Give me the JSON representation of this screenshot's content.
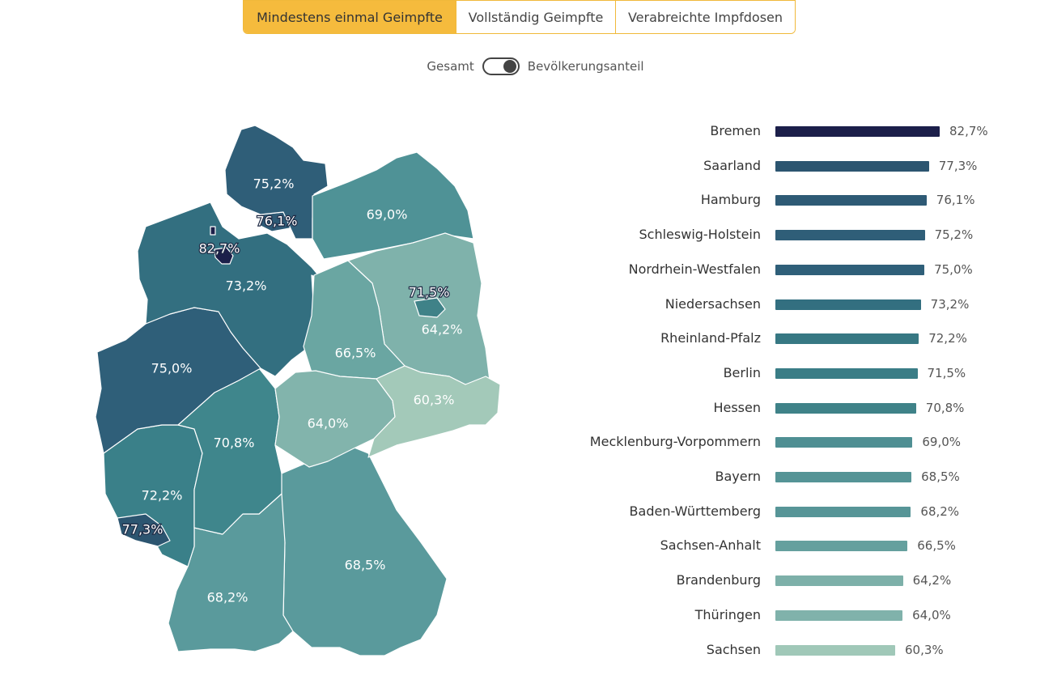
{
  "tabs": [
    {
      "label": "Mindestens einmal Geimpfte",
      "active": true
    },
    {
      "label": "Vollständig Geimpfte",
      "active": false
    },
    {
      "label": "Verabreichte Impfdosen",
      "active": false
    }
  ],
  "toggle": {
    "left_label": "Gesamt",
    "right_label": "Bevölkerungsanteil",
    "state": "right"
  },
  "map_labels": {
    "schleswig_holstein": "75,2%",
    "hamburg": "76,1%",
    "bremen": "82,7%",
    "niedersachsen": "73,2%",
    "mecklenburg_vorpommern": "69,0%",
    "brandenburg": "64,2%",
    "berlin": "71,5%",
    "sachsen_anhalt": "66,5%",
    "nordrhein_westfalen": "75,0%",
    "hessen": "70,8%",
    "thueringen": "64,0%",
    "sachsen": "60,3%",
    "rheinland_pfalz": "72,2%",
    "saarland": "77,3%",
    "bayern": "68,5%",
    "baden_wuerttemberg": "68,2%"
  },
  "chart_data": {
    "type": "bar",
    "orientation": "horizontal",
    "categories": [
      "Bremen",
      "Saarland",
      "Hamburg",
      "Schleswig-Holstein",
      "Nordrhein-Westfalen",
      "Niedersachsen",
      "Rheinland-Pfalz",
      "Berlin",
      "Hessen",
      "Mecklenburg-Vorpommern",
      "Bayern",
      "Baden-Württemberg",
      "Sachsen-Anhalt",
      "Brandenburg",
      "Thüringen",
      "Sachsen"
    ],
    "values": [
      82.7,
      77.3,
      76.1,
      75.2,
      75.0,
      73.2,
      72.2,
      71.5,
      70.8,
      69.0,
      68.5,
      68.2,
      66.5,
      64.2,
      64.0,
      60.3
    ],
    "value_labels": [
      "82,7%",
      "77,3%",
      "76,1%",
      "75,2%",
      "75,0%",
      "73,2%",
      "72,2%",
      "71,5%",
      "70,8%",
      "69,0%",
      "68,5%",
      "68,2%",
      "66,5%",
      "64,2%",
      "64,0%",
      "60,3%"
    ],
    "colors": [
      "#1c1f4a",
      "#2c5570",
      "#2e5a75",
      "#2f5e78",
      "#2f5f79",
      "#336f80",
      "#377883",
      "#3a7d86",
      "#3f8288",
      "#4f8f93",
      "#559496",
      "#579597",
      "#65a09e",
      "#7db0a9",
      "#80b2ab",
      "#a0c8b8"
    ],
    "title": "",
    "xlabel": "",
    "ylabel": ""
  }
}
